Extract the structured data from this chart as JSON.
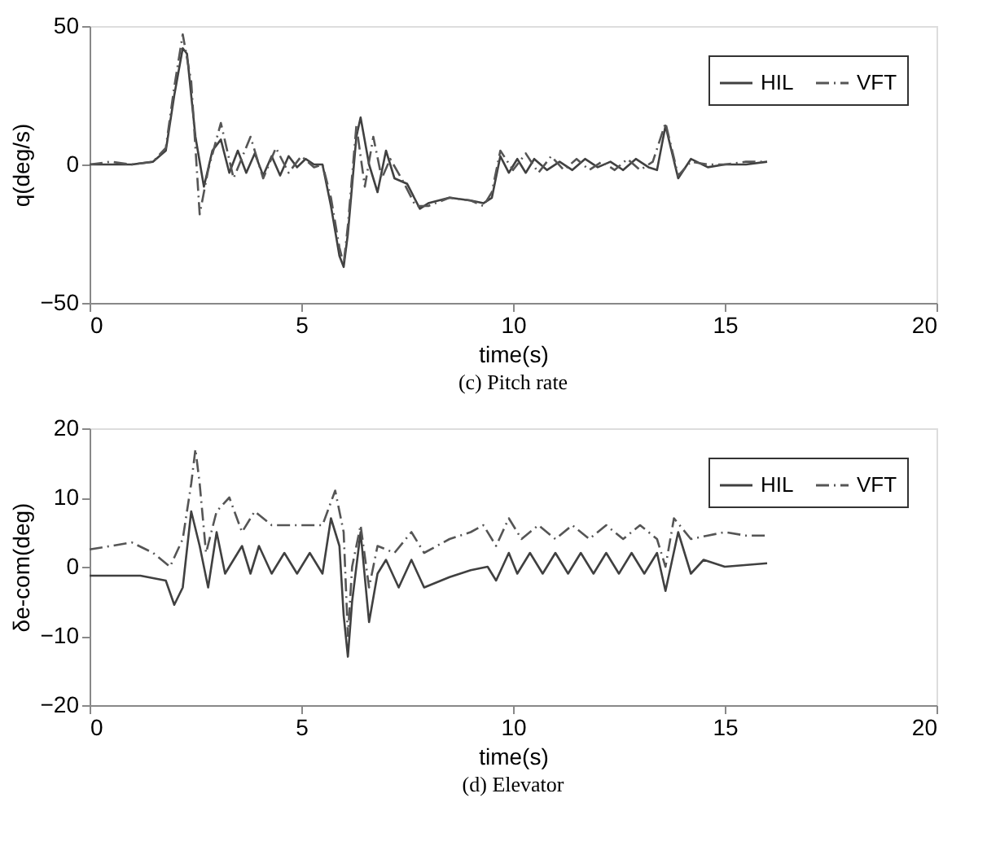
{
  "chart_data": [
    {
      "type": "line",
      "title": "(c) Pitch rate",
      "xlabel": "time(s)",
      "ylabel": "q(deg/s)",
      "xlim": [
        0,
        20
      ],
      "ylim": [
        -50,
        50
      ],
      "xticks": [
        0,
        5,
        10,
        15,
        20
      ],
      "yticks": [
        -50,
        0,
        50
      ],
      "grid": false,
      "legend": "top right",
      "series": [
        {
          "name": "HIL",
          "color": "#404040",
          "line_style": "solid",
          "x": [
            0,
            0.5,
            1,
            1.5,
            1.8,
            2.0,
            2.2,
            2.3,
            2.5,
            2.7,
            2.9,
            3.1,
            3.3,
            3.5,
            3.7,
            3.9,
            4.1,
            4.3,
            4.5,
            4.7,
            4.9,
            5.1,
            5.3,
            5.5,
            5.7,
            5.9,
            6.0,
            6.1,
            6.3,
            6.4,
            6.6,
            6.8,
            7.0,
            7.2,
            7.5,
            7.8,
            8.0,
            8.5,
            9.0,
            9.3,
            9.5,
            9.7,
            9.9,
            10.1,
            10.3,
            10.5,
            10.8,
            11.1,
            11.4,
            11.7,
            12.0,
            12.3,
            12.6,
            12.9,
            13.2,
            13.4,
            13.6,
            13.9,
            14.2,
            14.6,
            15.0,
            15.5,
            16.0
          ],
          "values": [
            0,
            0,
            0,
            1,
            5,
            25,
            42,
            40,
            10,
            -8,
            5,
            9,
            -3,
            5,
            -3,
            4,
            -4,
            3,
            -4,
            3,
            -1,
            2,
            0,
            0,
            -15,
            -33,
            -37,
            -25,
            10,
            17,
            0,
            -10,
            5,
            -5,
            -7,
            -16,
            -14,
            -12,
            -13,
            -14,
            -12,
            3,
            -3,
            2,
            -3,
            2,
            -2,
            1,
            -2,
            2,
            -1,
            1,
            -2,
            2,
            -1,
            -2,
            14,
            -5,
            2,
            -1,
            0,
            0,
            1
          ]
        },
        {
          "name": "VFT",
          "color": "#555555",
          "line_style": "dashdot",
          "x": [
            0,
            0.5,
            1,
            1.5,
            1.8,
            2.0,
            2.2,
            2.4,
            2.6,
            2.8,
            3.1,
            3.4,
            3.8,
            4.1,
            4.4,
            4.7,
            5.0,
            5.3,
            5.5,
            5.7,
            5.9,
            6.0,
            6.1,
            6.3,
            6.5,
            6.7,
            6.9,
            7.1,
            7.4,
            7.7,
            8.0,
            8.5,
            9.0,
            9.3,
            9.5,
            9.7,
            10.0,
            10.3,
            10.6,
            10.9,
            11.2,
            11.5,
            11.8,
            12.1,
            12.4,
            12.7,
            13.0,
            13.3,
            13.6,
            13.9,
            14.2,
            14.6,
            15.0,
            15.5,
            16.0
          ],
          "values": [
            0,
            1,
            0,
            1,
            6,
            28,
            47,
            30,
            -18,
            -2,
            15,
            -5,
            10,
            -5,
            6,
            -3,
            3,
            -1,
            0,
            -12,
            -30,
            -36,
            -22,
            14,
            -8,
            10,
            -5,
            2,
            -6,
            -15,
            -15,
            -12,
            -13,
            -15,
            -10,
            5,
            -2,
            4,
            -3,
            3,
            -2,
            2,
            -2,
            1,
            -2,
            2,
            -2,
            1,
            15,
            -4,
            1,
            0,
            0,
            1,
            1
          ]
        }
      ]
    },
    {
      "type": "line",
      "title": "(d) Elevator",
      "xlabel": "time(s)",
      "ylabel": "δe-com(deg)",
      "xlim": [
        0,
        20
      ],
      "ylim": [
        -20,
        20
      ],
      "xticks": [
        0,
        5,
        10,
        15,
        20
      ],
      "yticks": [
        -20,
        -10,
        0,
        10,
        20
      ],
      "grid": false,
      "legend": "top right",
      "series": [
        {
          "name": "HIL",
          "color": "#404040",
          "line_style": "solid",
          "x": [
            0,
            1.2,
            1.8,
            2.0,
            2.2,
            2.4,
            2.6,
            2.8,
            3.0,
            3.2,
            3.4,
            3.6,
            3.8,
            4.0,
            4.3,
            4.6,
            4.9,
            5.2,
            5.5,
            5.7,
            5.9,
            6.0,
            6.1,
            6.2,
            6.4,
            6.6,
            6.8,
            7.0,
            7.3,
            7.6,
            7.9,
            8.5,
            9.0,
            9.4,
            9.6,
            9.9,
            10.1,
            10.4,
            10.7,
            11.0,
            11.3,
            11.6,
            11.9,
            12.2,
            12.5,
            12.8,
            13.1,
            13.4,
            13.6,
            13.9,
            14.2,
            14.5,
            15.0,
            16.0
          ],
          "values": [
            -1.3,
            -1.3,
            -2,
            -5.5,
            -3,
            8,
            3,
            -3,
            5,
            -1,
            1,
            3,
            -1,
            3,
            -1,
            2,
            -1,
            2,
            -1,
            7,
            3,
            -7,
            -13,
            -5,
            5,
            -8,
            -1,
            1,
            -3,
            1,
            -3,
            -1.5,
            -0.5,
            0,
            -2,
            2,
            -1,
            2,
            -1,
            2,
            -1,
            2,
            -1,
            2,
            -1,
            2,
            -1,
            2,
            -3.5,
            5,
            -1,
            1,
            0,
            0.5
          ]
        },
        {
          "name": "VFT",
          "color": "#555555",
          "line_style": "dashdot",
          "x": [
            0,
            0.5,
            1,
            1.5,
            1.9,
            2.2,
            2.4,
            2.5,
            2.6,
            2.75,
            3.0,
            3.3,
            3.6,
            3.9,
            4.3,
            4.7,
            5.2,
            5.5,
            5.8,
            6.0,
            6.1,
            6.2,
            6.4,
            6.6,
            6.8,
            7.2,
            7.6,
            7.9,
            8.5,
            9.0,
            9.3,
            9.6,
            9.9,
            10.2,
            10.6,
            11.0,
            11.4,
            11.8,
            12.2,
            12.6,
            13.0,
            13.4,
            13.6,
            13.8,
            14.2,
            14.6,
            15.0,
            15.5,
            16.0
          ],
          "values": [
            2.5,
            3,
            3.5,
            2,
            0,
            4,
            12,
            17,
            12,
            2,
            8,
            10,
            5,
            8,
            6,
            6,
            6,
            6,
            11,
            5,
            -10,
            0,
            6,
            -3,
            3,
            2,
            5,
            2,
            4,
            5,
            6,
            3,
            7,
            4,
            6,
            4,
            6,
            4,
            6,
            4,
            6,
            4,
            0,
            7,
            4,
            4.5,
            5,
            4.5,
            4.5
          ]
        }
      ]
    }
  ]
}
